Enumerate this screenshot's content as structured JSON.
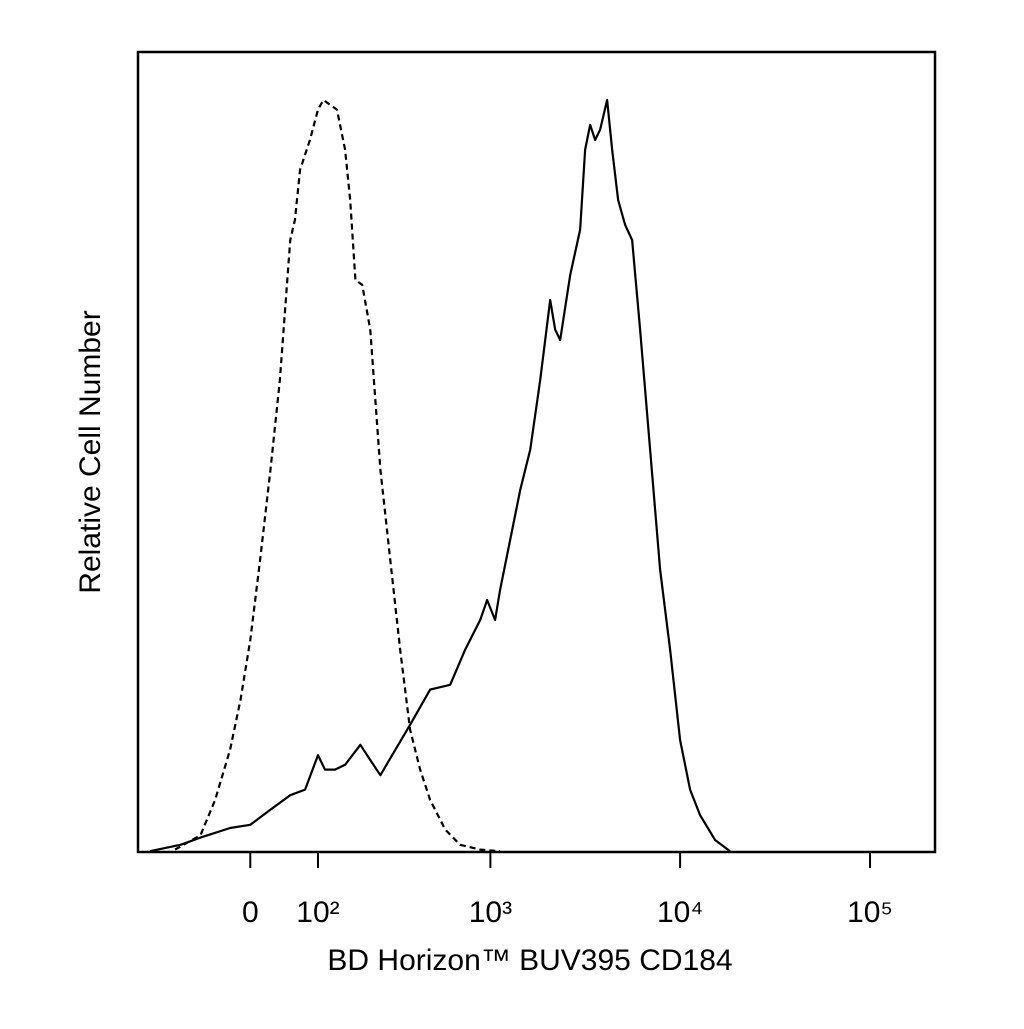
{
  "chart_data": {
    "type": "line",
    "x_label": "BD Horizon™ BUV395 CD184",
    "y_label": "Relative Cell Number",
    "xscale": "biexponential",
    "xlim": [
      -199,
      219800
    ],
    "xticks": [
      0,
      {
        "value": 100,
        "label": "10²"
      },
      {
        "value": 1000,
        "label": "10³"
      },
      {
        "value": 10000,
        "label": "10⁴"
      },
      {
        "value": 100000,
        "label": "10⁵"
      }
    ],
    "ylim": [
      0,
      100
    ],
    "grid": false,
    "series": [
      {
        "color": "#000000",
        "style": "dashed",
        "x": [
          -114,
          -70,
          -48,
          -27,
          -13,
          0,
          13,
          27,
          40,
          55,
          62,
          70,
          86,
          100,
          110,
          123,
          137,
          155,
          167,
          180,
          198,
          221,
          253,
          288,
          327,
          371,
          421,
          477,
          575,
          691,
          883,
          1126
        ],
        "values": [
          0.3,
          2.1,
          6.5,
          12.8,
          19,
          26.5,
          36.5,
          47.8,
          59,
          76.5,
          79,
          85.3,
          89,
          92.8,
          94,
          93.4,
          92.8,
          87.8,
          81.5,
          71.5,
          70.9,
          65.3,
          47.8,
          36.5,
          25.3,
          15.3,
          10.3,
          6.5,
          2.8,
          0.9,
          0.3,
          0.1
        ]
      },
      {
        "color": "#000000",
        "style": "solid",
        "x": [
          -168,
          -104,
          -70,
          -27,
          0,
          27,
          55,
          78,
          100,
          113,
          133,
          155,
          193,
          221,
          253,
          295,
          371,
          477,
          611,
          735,
          883,
          961,
          1059,
          1126,
          1272,
          1439,
          1624,
          1833,
          2069,
          2198,
          2336,
          2637,
          2976,
          3162,
          3360,
          3570,
          3793,
          4128,
          4387,
          4718,
          5135,
          5590,
          6158,
          6952,
          7848,
          8859,
          10000,
          11288,
          12743,
          15283,
          18330
        ],
        "values": [
          0.1,
          0.9,
          1.8,
          3,
          3.4,
          5.3,
          7.1,
          7.8,
          12.1,
          10.3,
          10.3,
          10.9,
          13.4,
          11.5,
          9.6,
          12.1,
          15.9,
          20.3,
          20.9,
          25.3,
          29,
          31.5,
          29,
          32.8,
          39,
          45.3,
          50.3,
          59,
          69,
          65.3,
          64,
          72.1,
          77.8,
          87.8,
          90.9,
          89,
          90.3,
          94,
          87.8,
          81.5,
          78.4,
          76.5,
          65.3,
          50.3,
          35.3,
          25.3,
          14,
          7.8,
          4.6,
          1.5,
          0.1
        ]
      }
    ]
  }
}
